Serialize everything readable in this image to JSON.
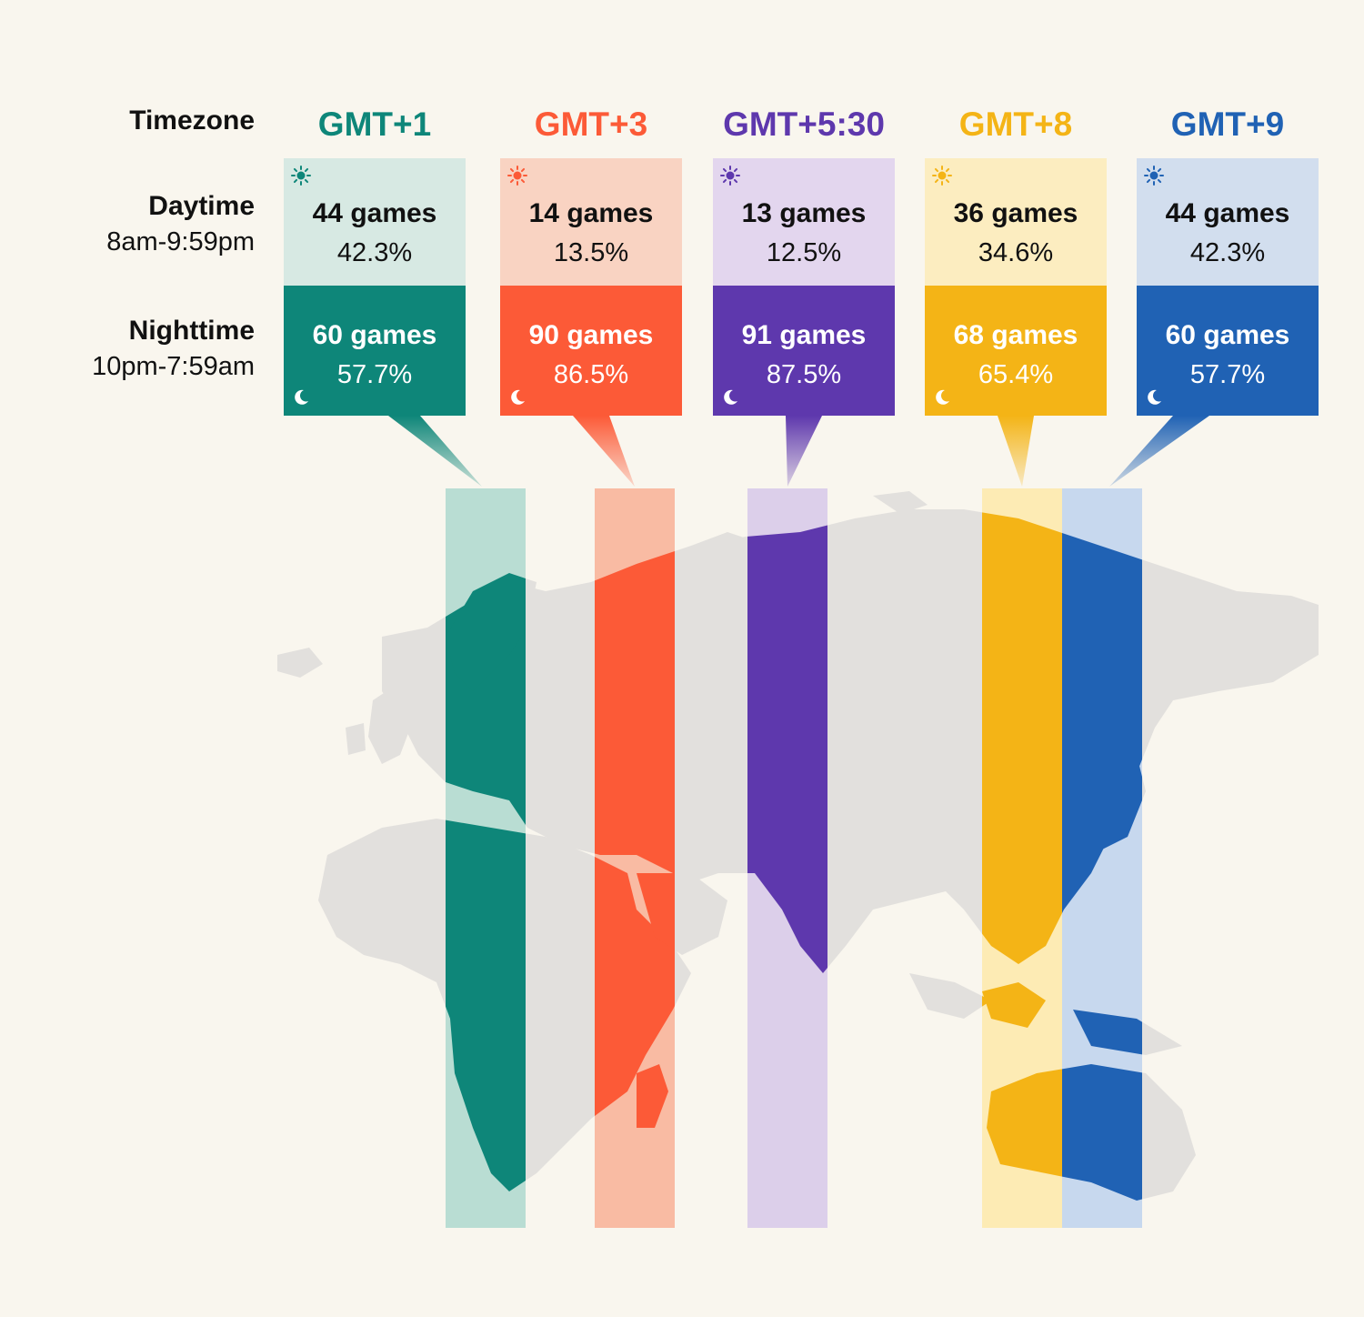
{
  "row_labels": {
    "timezone": "Timezone",
    "daytime": {
      "title": "Daytime",
      "range": "8am-9:59pm"
    },
    "nighttime": {
      "title": "Nighttime",
      "range": "10pm-7:59am"
    }
  },
  "zones": [
    {
      "label": "GMT+1",
      "day_games": "44 games",
      "day_pct": "42.3%",
      "night_games": "60 games",
      "night_pct": "57.7%",
      "color": "#0e8679",
      "light": "#d7e9e3",
      "band": "#b9ddd3"
    },
    {
      "label": "GMT+3",
      "day_games": "14 games",
      "day_pct": "13.5%",
      "night_games": "90 games",
      "night_pct": "86.5%",
      "color": "#fc5a37",
      "light": "#f9d3c2",
      "band": "#f9bba3"
    },
    {
      "label": "GMT+5:30",
      "day_games": "13 games",
      "day_pct": "12.5%",
      "night_games": "91 games",
      "night_pct": "87.5%",
      "color": "#5e38ad",
      "light": "#e3d6ee",
      "band": "#dccfea"
    },
    {
      "label": "GMT+8",
      "day_games": "36 games",
      "day_pct": "34.6%",
      "night_games": "68 games",
      "night_pct": "65.4%",
      "color": "#f4b416",
      "light": "#fcedc0",
      "band": "#fdebb4"
    },
    {
      "label": "GMT+9",
      "day_games": "44 games",
      "day_pct": "42.3%",
      "night_games": "60 games",
      "night_pct": "57.7%",
      "color": "#2062b4",
      "light": "#d2deee",
      "band": "#c7d8ee"
    }
  ],
  "icons": {
    "day": "sun-icon",
    "night": "moon-icon"
  },
  "colors": {
    "background": "#f9f6ee",
    "land": "#e2e0dd"
  }
}
